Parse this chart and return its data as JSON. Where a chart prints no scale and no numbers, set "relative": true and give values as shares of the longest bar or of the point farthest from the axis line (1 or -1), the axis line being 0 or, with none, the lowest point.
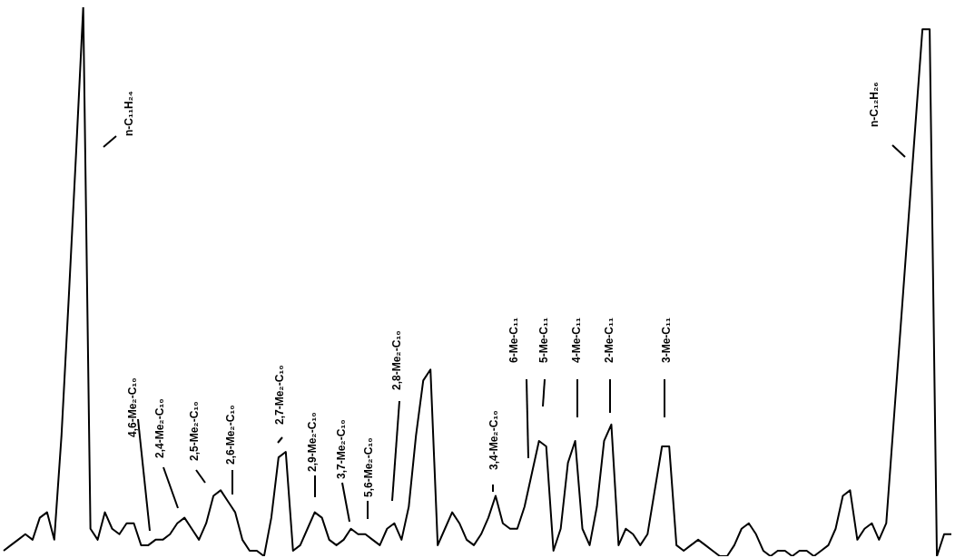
{
  "chart_data": {
    "type": "line",
    "relative": true,
    "tick_labels": false,
    "marker": "none",
    "categories": [
      null,
      null,
      null,
      null,
      null,
      null,
      null,
      null,
      null,
      null,
      null,
      null,
      null,
      null,
      null,
      null,
      null,
      null,
      null,
      null,
      null,
      null,
      null,
      null,
      null,
      null,
      null,
      null,
      null,
      null,
      null,
      null,
      null,
      null,
      null,
      null,
      null,
      null,
      null,
      null,
      null,
      null,
      null,
      null,
      null,
      null,
      null,
      null,
      null,
      null,
      null,
      null,
      null,
      null,
      null,
      null,
      null,
      null,
      null,
      null,
      null,
      null,
      null,
      null,
      null,
      null,
      null,
      null,
      null,
      null,
      null,
      null,
      null,
      null,
      null,
      null,
      null,
      null,
      null,
      null,
      null,
      null,
      null,
      null,
      null,
      null,
      null,
      null,
      null,
      null,
      null,
      null,
      null,
      null,
      null,
      null,
      null,
      null,
      null,
      null,
      null,
      null,
      null,
      null,
      null,
      null,
      null,
      null,
      null,
      null,
      null,
      null,
      null,
      null,
      null,
      null,
      null,
      null,
      null,
      null,
      null,
      null,
      null,
      null,
      null,
      null,
      null,
      null,
      null,
      null,
      null,
      null
    ],
    "series": [
      {
        "color": "#000000",
        "values": [
          0.01,
          0.02,
          0.03,
          0.04,
          0.03,
          0.07,
          0.08,
          0.03,
          0.22,
          0.47,
          0.73,
          1,
          0.05,
          0.03,
          0.08,
          0.05,
          0.04,
          0.06,
          0.06,
          0.02,
          0.02,
          0.03,
          0.03,
          0.04,
          0.06,
          0.07,
          0.05,
          0.03,
          0.06,
          0.11,
          0.12,
          0.1,
          0.08,
          0.03,
          0.01,
          0.01,
          0,
          0.07,
          0.18,
          0.19,
          0.01,
          0.02,
          0.05,
          0.08,
          0.07,
          0.03,
          0.02,
          0.03,
          0.05,
          0.04,
          0.04,
          0.03,
          0.02,
          0.05,
          0.06,
          0.03,
          0.09,
          0.22,
          0.32,
          0.34,
          0.02,
          0.05,
          0.08,
          0.06,
          0.03,
          0.02,
          0.04,
          0.07,
          0.11,
          0.06,
          0.05,
          0.05,
          0.09,
          0.15,
          0.21,
          0.2,
          0.01,
          0.05,
          0.17,
          0.21,
          0.05,
          0.02,
          0.09,
          0.21,
          0.24,
          0.02,
          0.05,
          0.04,
          0.02,
          0.04,
          0.12,
          0.2,
          0.2,
          0.02,
          0.01,
          0.02,
          0.03,
          0.02,
          0.01,
          0,
          0,
          0.02,
          0.05,
          0.06,
          0.04,
          0.01,
          0,
          0.01,
          0.01,
          0,
          0.01,
          0.01,
          0,
          0.01,
          0.02,
          0.05,
          0.11,
          0.12,
          0.03,
          0.05,
          0.06,
          0.03,
          0.06,
          0.24,
          0.42,
          0.6,
          0.78,
          0.96,
          0.96,
          0,
          0.04,
          0.04
        ]
      }
    ],
    "annotations": [
      "n-C₁₁H₂₄",
      "4,6-Me₂-C₁₀",
      "2,4-Me₂-C₁₀",
      "2,5-Me₂-C₁₀",
      "2,6-Me₂-C₁₀",
      "2,7-Me₂-C₁₀",
      "2,9-Me₂-C₁₀",
      "3,7-Me₂-C₁₀",
      "5,6-Me₂-C₁₀",
      "2,8-Me₂-C₁₀",
      "3,4-Me₂-C₁₀",
      "6-Me-C₁₁",
      "5-Me-C₁₁",
      "4-Me-C₁₁",
      "2-Me-C₁₁",
      "3-Me-C₁₁",
      "n-C₁₂H₂₆"
    ]
  }
}
